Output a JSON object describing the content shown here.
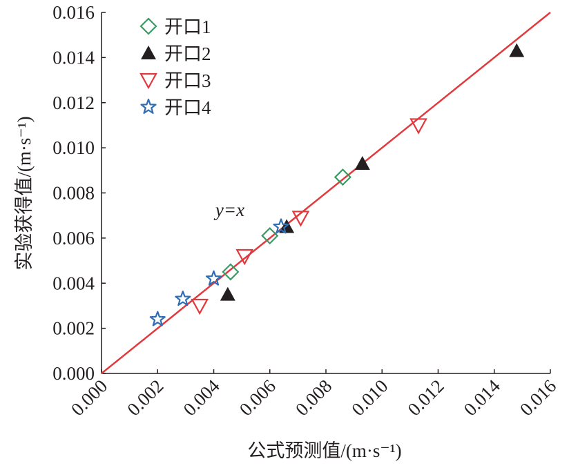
{
  "chart_data": {
    "type": "scatter",
    "title": "",
    "xlabel": "公式预测值/(m·s⁻¹)",
    "ylabel": "实验获得值/(m·s⁻¹)",
    "xlim": [
      0,
      0.016
    ],
    "ylim": [
      0,
      0.016
    ],
    "xticks": [
      "0.000",
      "0.002",
      "0.004",
      "0.006",
      "0.008",
      "0.010",
      "0.012",
      "0.014",
      "0.016"
    ],
    "yticks": [
      "0.000",
      "0.002",
      "0.004",
      "0.006",
      "0.008",
      "0.010",
      "0.012",
      "0.014",
      "0.016"
    ],
    "grid": false,
    "legend_position": "top-left",
    "annotation": "y=x",
    "reference_line": {
      "label": "y=x",
      "color": "#e0393e",
      "from": [
        0,
        0
      ],
      "to": [
        0.016,
        0.016
      ]
    },
    "series": [
      {
        "name": "开口1",
        "marker": "diamond-open",
        "color": "#3a9a63",
        "x": [
          0.0046,
          0.006,
          0.0086
        ],
        "y": [
          0.0045,
          0.0061,
          0.0087
        ]
      },
      {
        "name": "开口2",
        "marker": "triangle-up-filled",
        "color": "#231f20",
        "x": [
          0.0045,
          0.0066,
          0.0093,
          0.0148
        ],
        "y": [
          0.0035,
          0.0065,
          0.0093,
          0.0143
        ]
      },
      {
        "name": "开口3",
        "marker": "triangle-down-open",
        "color": "#e0393e",
        "x": [
          0.0035,
          0.0051,
          0.0071,
          0.0113
        ],
        "y": [
          0.003,
          0.0052,
          0.0069,
          0.011
        ]
      },
      {
        "name": "开口4",
        "marker": "star-open",
        "color": "#2f6db5",
        "x": [
          0.002,
          0.0029,
          0.004,
          0.0064
        ],
        "y": [
          0.0024,
          0.0033,
          0.0042,
          0.0065
        ]
      }
    ]
  }
}
